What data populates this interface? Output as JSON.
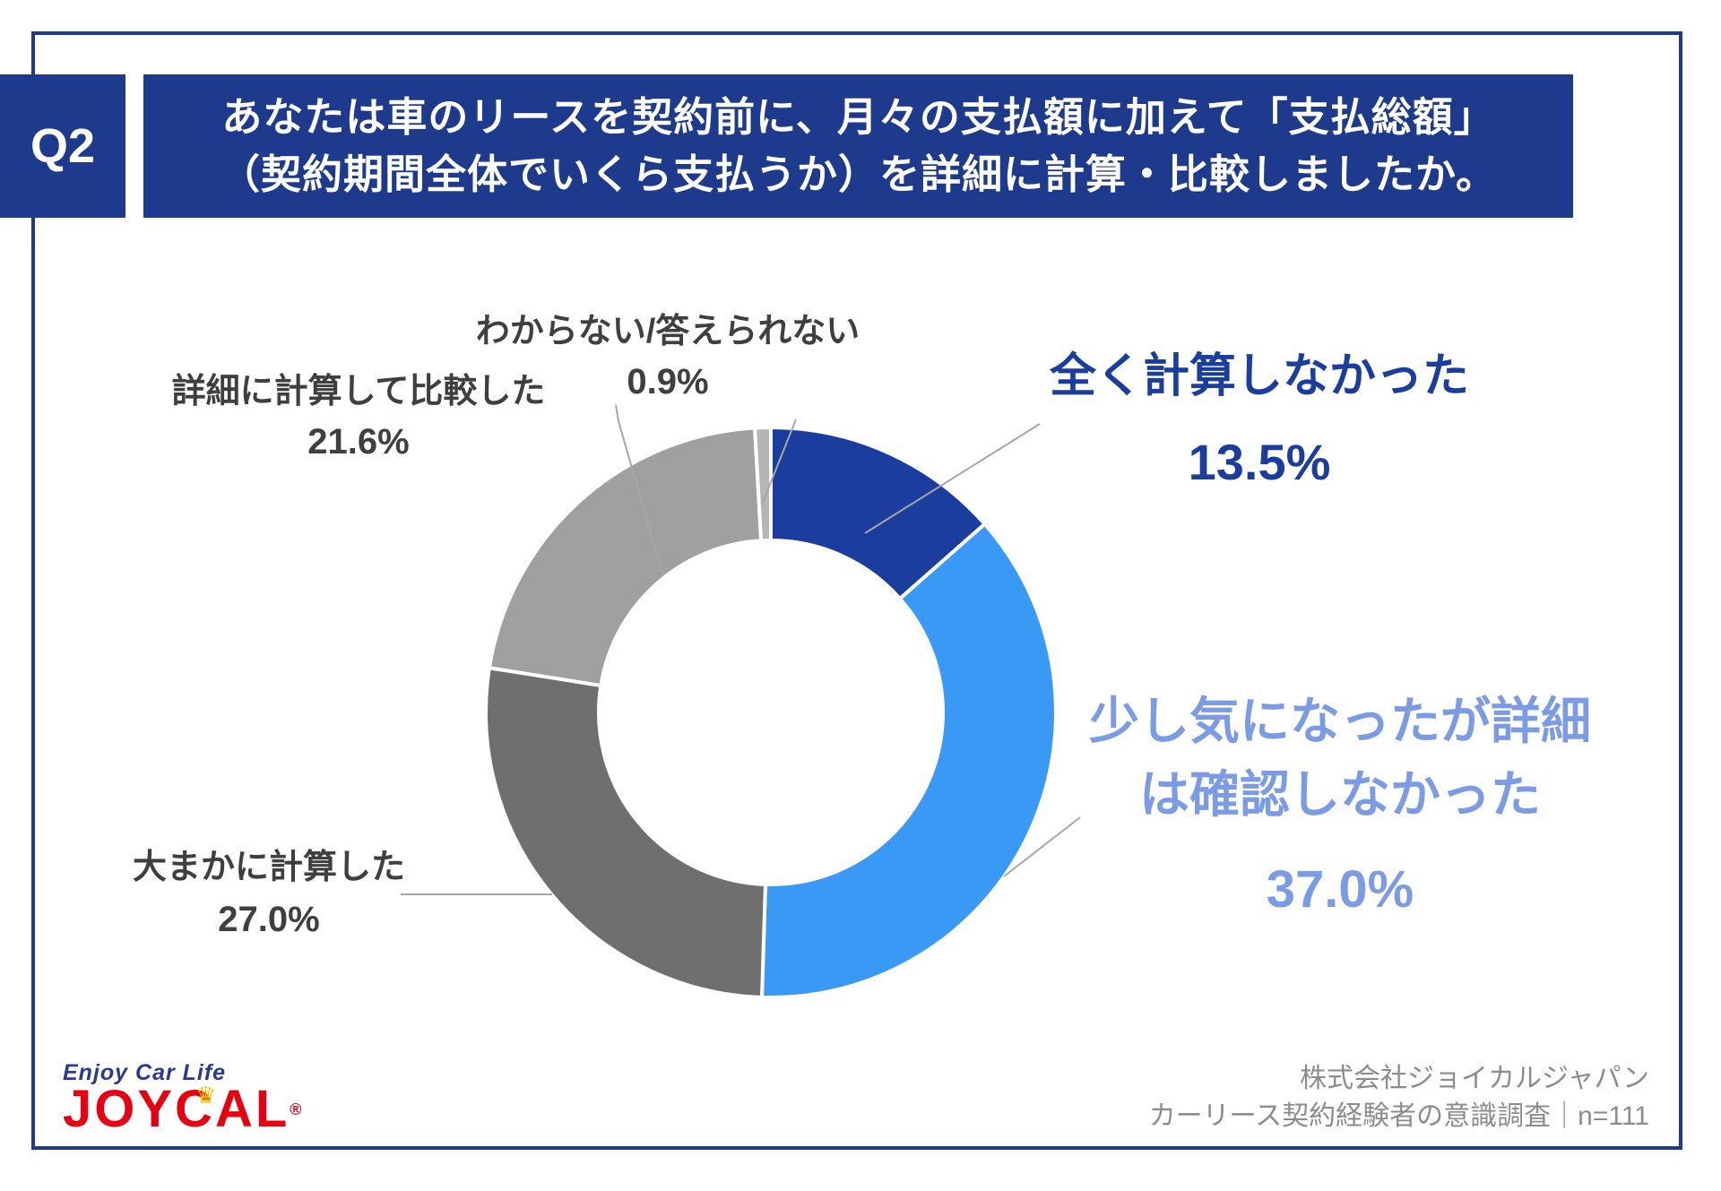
{
  "question": {
    "badge": "Q2",
    "title_line1": "あなたは車のリースを契約前に、月々の支払額に加えて「支払総額」",
    "title_line2": "（契約期間全体でいくら支払うか）を詳細に計算・比較しましたか。"
  },
  "chart_data": {
    "type": "pie",
    "donut": true,
    "title": "あなたは車のリースを契約前に、月々の支払額に加えて「支払総額」（契約期間全体でいくら支払うか）を詳細に計算・比較しましたか。",
    "categories": [
      "全く計算しなかった",
      "少し気になったが詳細は確認しなかった",
      "大まかに計算した",
      "詳細に計算して比較した",
      "わからない/答えられない"
    ],
    "values": [
      13.5,
      37.0,
      27.0,
      21.6,
      0.9
    ],
    "unit": "%",
    "colors": [
      "#1b3d9e",
      "#3b99f6",
      "#6f6f6f",
      "#a0a0a0",
      "#b5b5b5"
    ],
    "start_angle_deg_from_top_clockwise": 0,
    "legend_position": "callout-labels",
    "sample_note": "n=111"
  },
  "callouts": {
    "none": {
      "line1": "全く計算しなかった",
      "pct": "13.5%"
    },
    "somewhat": {
      "line1": "少し気になったが詳細",
      "line2": "は確認しなかった",
      "pct": "37.0%"
    },
    "rough": {
      "line1": "大まかに計算した",
      "pct": "27.0%"
    },
    "detailed": {
      "line1": "詳細に計算して比較した",
      "pct": "21.6%"
    },
    "unknown": {
      "line1": "わからない/答えられない",
      "pct": "0.9%"
    }
  },
  "footer": {
    "logo": {
      "tagline": "Enjoy Car Life",
      "brand": "JOYCAL",
      "registered": "®",
      "crown": "♛"
    },
    "attribution_line1": "株式会社ジョイカルジャパン",
    "attribution_line2": "カーリース契約経験者の意識調査｜n=111"
  },
  "colors": {
    "navy": "#1e3a8c",
    "leader_line": "#a6a6a6",
    "callout_dark_blue_text": "#1b3d9e",
    "callout_light_blue_text": "#7b9be4",
    "callout_gray_text": "#3f3f3f",
    "attribution_gray": "#8c8c8c",
    "logo_red": "#e60012",
    "logo_blue": "#2b3990"
  }
}
